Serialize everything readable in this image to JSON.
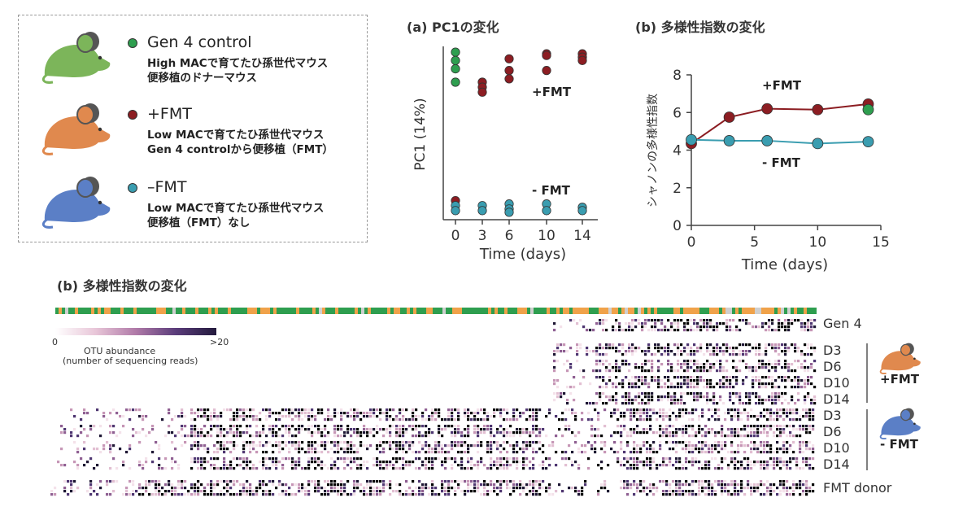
{
  "legend": {
    "items": [
      {
        "name": "Gen 4 control",
        "desc1": "High MACで育てたひ孫世代マウス",
        "desc2": "便移植のドナーマウス",
        "color": "#2e9e4f",
        "mouse_color": "#7cb55a"
      },
      {
        "name": "+FMT",
        "desc1": "Low MACで育てたひ孫世代マウス",
        "desc2": "Gen 4 controlから便移植（FMT）",
        "color": "#8c1d22",
        "mouse_color": "#e0894e"
      },
      {
        "name": "–FMT",
        "desc1": "Low MACで育てたひ孫世代マウス",
        "desc2": "便移植（FMT）なし",
        "color": "#3a9db0",
        "mouse_color": "#5b7fc6"
      }
    ]
  },
  "panels": {
    "a_title": "(a) PC1の変化",
    "b_title": "(b) 多様性指数の変化",
    "heatmap_title": "(b) 多様性指数の変化"
  },
  "chart_data": [
    {
      "type": "scatter",
      "title": "(a) PC1の変化",
      "xlabel": "Time (days)",
      "ylabel": "PC1 (14%)",
      "xticks": [
        0,
        3,
        6,
        10,
        14
      ],
      "annotations": [
        "+FMT",
        "- FMT"
      ],
      "series": [
        {
          "color": "#2e9e4f",
          "points": [
            [
              0,
              0.98
            ],
            [
              0,
              0.93
            ],
            [
              0,
              0.88
            ],
            [
              0,
              0.8
            ]
          ]
        },
        {
          "color": "#8c1d22",
          "points": [
            [
              0,
              0.09
            ],
            [
              3,
              0.8
            ],
            [
              3,
              0.77
            ],
            [
              3,
              0.74
            ],
            [
              6,
              0.94
            ],
            [
              6,
              0.87
            ],
            [
              6,
              0.82
            ],
            [
              10,
              0.97
            ],
            [
              10,
              0.96
            ],
            [
              10,
              0.87
            ],
            [
              14,
              0.97
            ],
            [
              14,
              0.95
            ],
            [
              14,
              0.93
            ]
          ]
        },
        {
          "color": "#3a9db0",
          "points": [
            [
              0,
              0.06
            ],
            [
              0,
              0.03
            ],
            [
              3,
              0.06
            ],
            [
              3,
              0.03
            ],
            [
              6,
              0.07
            ],
            [
              6,
              0.04
            ],
            [
              6,
              0.02
            ],
            [
              10,
              0.07
            ],
            [
              10,
              0.03
            ],
            [
              14,
              0.05
            ],
            [
              14,
              0.03
            ]
          ]
        }
      ]
    },
    {
      "type": "line",
      "title": "(b) 多様性指数の変化",
      "xlabel": "Time (days)",
      "ylabel": "シャノンの多様性指数",
      "xlim": [
        0,
        15
      ],
      "ylim": [
        0,
        8
      ],
      "xticks": [
        0,
        5,
        10,
        15
      ],
      "yticks": [
        0,
        2,
        4,
        6,
        8
      ],
      "annotations": [
        "+FMT",
        "- FMT"
      ],
      "series": [
        {
          "name": "+FMT",
          "color": "#8c1d22",
          "x": [
            0,
            3,
            6,
            10,
            14
          ],
          "y": [
            4.35,
            5.75,
            6.2,
            6.15,
            6.45
          ]
        },
        {
          "name": "- FMT",
          "color": "#3a9db0",
          "x": [
            0,
            3,
            6,
            10,
            14
          ],
          "y": [
            4.55,
            4.5,
            4.5,
            4.35,
            4.45
          ]
        },
        {
          "color": "#2e9e4f",
          "x": [
            14
          ],
          "y": [
            6.15
          ]
        }
      ]
    },
    {
      "type": "heatmap",
      "title": "(b) 多様性指数の変化",
      "colorbar": {
        "label1": "OTU abundance",
        "label2": "(number of sequencing reads)",
        "min": "0",
        "max": ">20"
      },
      "row_labels": [
        "Gen 4",
        "D3",
        "D6",
        "D10",
        "D14",
        "D3",
        "D6",
        "D10",
        "D14",
        "FMT donor"
      ],
      "groups": [
        "+FMT",
        "- FMT"
      ],
      "top_bar_colors": [
        "#f0a24a",
        "#2e9e4f",
        "#cfcfcf"
      ]
    }
  ]
}
